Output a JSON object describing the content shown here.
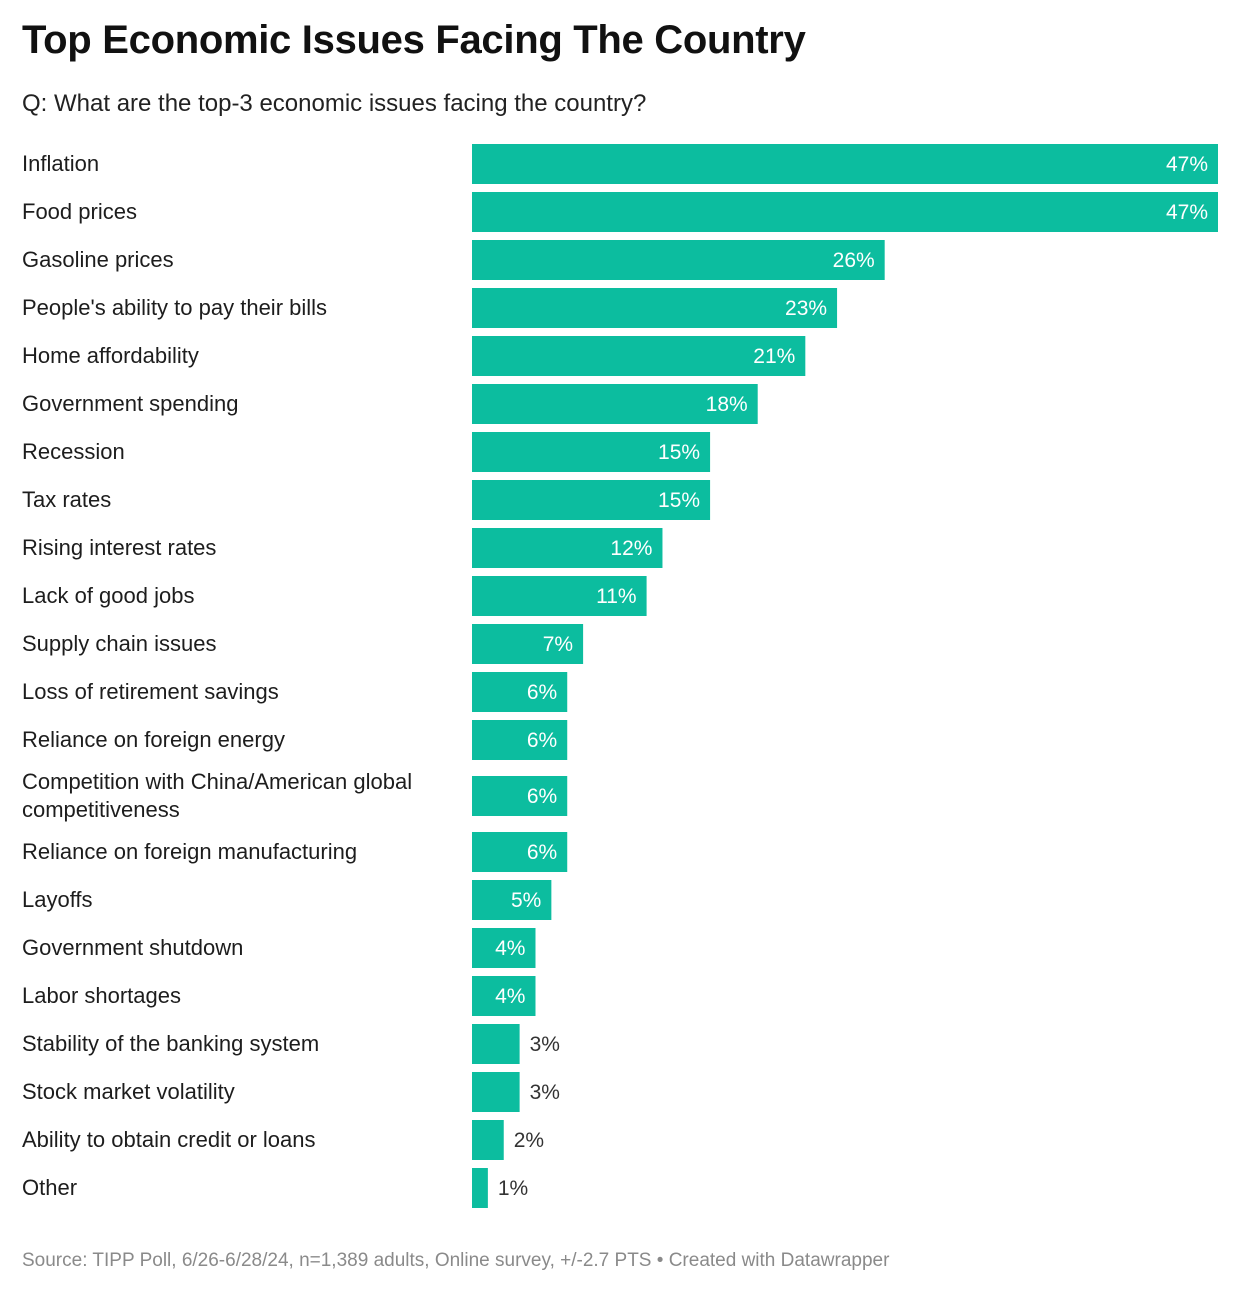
{
  "chart_data": {
    "type": "bar",
    "orientation": "horizontal",
    "title": "Top Economic Issues Facing The Country",
    "subtitle": "Q: What are the top-3 economic issues facing the country?",
    "categories": [
      "Inflation",
      "Food prices",
      "Gasoline prices",
      "People's ability to pay their bills",
      "Home affordability",
      "Government spending",
      "Recession",
      "Tax rates",
      "Rising interest rates",
      "Lack of good jobs",
      "Supply chain issues",
      "Loss of retirement savings",
      "Reliance on foreign energy",
      "Competition with China/American global competitiveness",
      "Reliance on foreign manufacturing",
      "Layoffs",
      "Government shutdown",
      "Labor shortages",
      "Stability of the banking system",
      "Stock market volatility",
      "Ability to obtain credit or loans",
      "Other"
    ],
    "values": [
      47,
      47,
      26,
      23,
      21,
      18,
      15,
      15,
      12,
      11,
      7,
      6,
      6,
      6,
      6,
      5,
      4,
      4,
      3,
      3,
      2,
      1
    ],
    "value_suffix": "%",
    "xlim": [
      0,
      47
    ],
    "grid": false,
    "legend": "none",
    "bar_color": "#0cbd9f"
  },
  "footer": {
    "source": "Source: TIPP Poll, 6/26-6/28/24, n=1,389 adults, Online survey, +/-2.7 PTS",
    "separator": " • ",
    "credit": "Created with Datawrapper"
  }
}
